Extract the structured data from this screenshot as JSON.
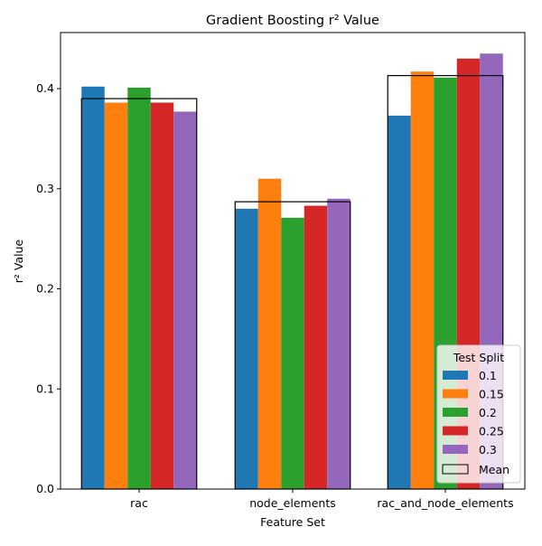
{
  "chart_data": {
    "type": "bar",
    "title": "Gradient Boosting r² Value",
    "xlabel": "Feature Set",
    "ylabel": "r² Value",
    "categories": [
      "rac",
      "node_elements",
      "rac_and_node_elements"
    ],
    "ylim": [
      0,
      0.456
    ],
    "yticks": [
      "0.0",
      "0.1",
      "0.2",
      "0.3",
      "0.4"
    ],
    "grid": false,
    "legend": {
      "title": "Test Split",
      "placement": "lower-right",
      "mean_label": "Mean"
    },
    "series": [
      {
        "name": "0.1",
        "color": "#1f77b4",
        "values": [
          0.402,
          0.28,
          0.373
        ]
      },
      {
        "name": "0.15",
        "color": "#ff7f0e",
        "values": [
          0.386,
          0.31,
          0.417
        ]
      },
      {
        "name": "0.2",
        "color": "#2ca02c",
        "values": [
          0.401,
          0.271,
          0.411
        ]
      },
      {
        "name": "0.25",
        "color": "#d62728",
        "values": [
          0.386,
          0.283,
          0.43
        ]
      },
      {
        "name": "0.3",
        "color": "#9467bd",
        "values": [
          0.377,
          0.29,
          0.435
        ]
      }
    ],
    "mean_values": [
      0.39,
      0.287,
      0.413
    ]
  }
}
